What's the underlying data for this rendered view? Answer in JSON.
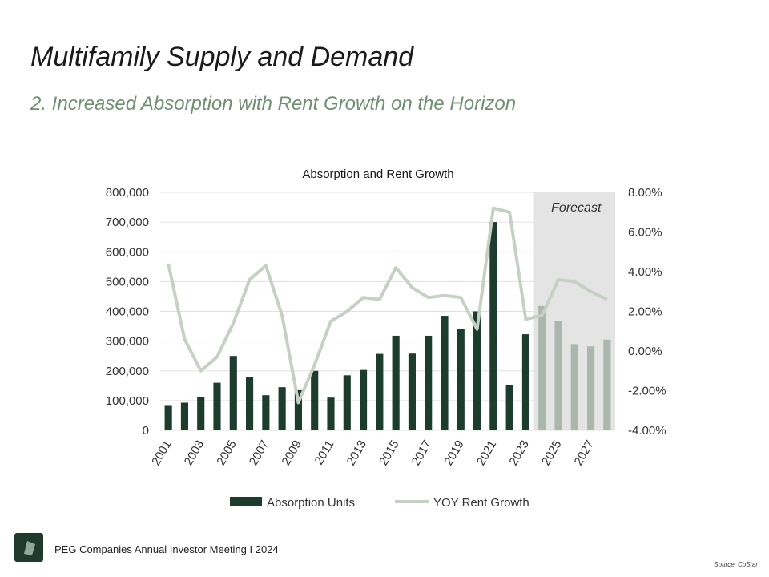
{
  "slide": {
    "title": "Multifamily Supply and Demand",
    "subtitle": "2. Increased Absorption with Rent Growth on the Horizon",
    "footer": "PEG Companies Annual Investor Meeting I 2024",
    "source": "Source: CoStar"
  },
  "colors": {
    "bar": "#1c3d2e",
    "bar_forecast": "#a9b7ae",
    "line": "#c6d0c4",
    "forecast_bg": "#e4e4e4",
    "subtitle": "#6f8f72"
  },
  "chart_data": {
    "type": "bar",
    "title": "Absorption and Rent Growth",
    "years": [
      2001,
      2002,
      2003,
      2004,
      2005,
      2006,
      2007,
      2008,
      2009,
      2010,
      2011,
      2012,
      2013,
      2014,
      2015,
      2016,
      2017,
      2018,
      2019,
      2020,
      2021,
      2022,
      2023,
      2024,
      2025,
      2026,
      2027,
      2028
    ],
    "x_tick_labels": [
      "2001",
      "2003",
      "2005",
      "2007",
      "2009",
      "2011",
      "2013",
      "2015",
      "2017",
      "2019",
      "2021",
      "2023",
      "2025",
      "2027"
    ],
    "forecast_start": 2024,
    "forecast_label": "Forecast",
    "y_left": {
      "min": 0,
      "max": 800000,
      "ticks": [
        "0",
        "100,000",
        "200,000",
        "300,000",
        "400,000",
        "500,000",
        "600,000",
        "700,000",
        "800,000"
      ]
    },
    "y_right": {
      "min": -4,
      "max": 8,
      "ticks": [
        "-4.00%",
        "-2.00%",
        "0.00%",
        "2.00%",
        "4.00%",
        "6.00%",
        "8.00%"
      ]
    },
    "grid": true,
    "legend_position": "bottom",
    "series": [
      {
        "name": "Absorption Units",
        "type": "bar",
        "axis": "left",
        "values": [
          85000,
          93000,
          112000,
          160000,
          250000,
          178000,
          118000,
          145000,
          135000,
          200000,
          110000,
          185000,
          203000,
          257000,
          318000,
          258000,
          318000,
          385000,
          342000,
          400000,
          700000,
          153000,
          323000,
          418000,
          368000,
          290000,
          282000,
          305000
        ]
      },
      {
        "name": "YOY Rent Growth",
        "type": "line",
        "axis": "right",
        "values": [
          4.4,
          0.6,
          -1.0,
          -0.3,
          1.4,
          3.6,
          4.3,
          1.8,
          -2.6,
          -0.7,
          1.5,
          2.0,
          2.7,
          2.6,
          4.2,
          3.2,
          2.7,
          2.8,
          2.7,
          1.1,
          7.2,
          7.0,
          1.6,
          1.8,
          3.6,
          3.5,
          3.0,
          2.6
        ]
      }
    ]
  }
}
